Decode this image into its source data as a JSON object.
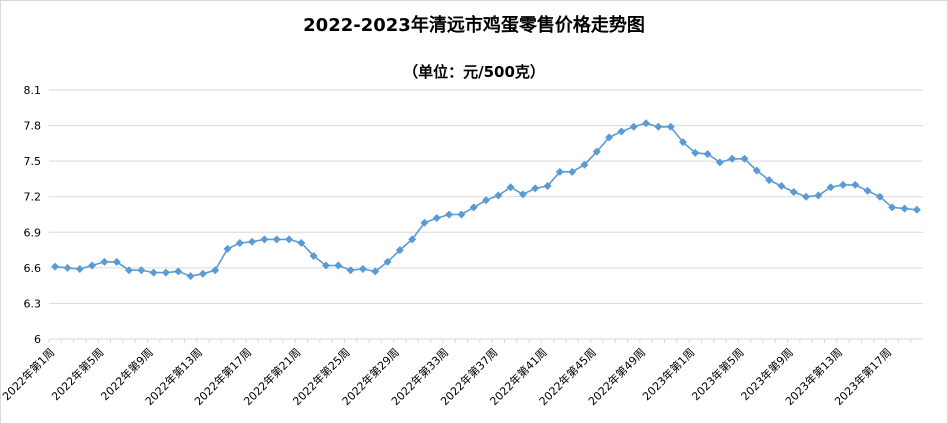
{
  "chart_data": {
    "type": "line",
    "title": "2022-2023年清远市鸡蛋零售价格走势图",
    "subtitle": "（单位：元/500克）",
    "xlabel": "",
    "ylabel": "",
    "ylim": [
      6,
      8.1
    ],
    "yticks": [
      "8.1",
      "7.8",
      "7.5",
      "7.2",
      "6.9",
      "6.6",
      "6.3",
      "6"
    ],
    "grid": true,
    "legend": "none",
    "color": "#5b9bd5",
    "x_tick_labels": [
      "2022年第1周",
      "2022年第5周",
      "2022年第9周",
      "2022年第13周",
      "2022年第17周",
      "2022年第21周",
      "2022年第25周",
      "2022年第29周",
      "2022年第33周",
      "2022年第37周",
      "2022年第41周",
      "2022年第45周",
      "2022年第49周",
      "2023年第1周",
      "2023年第5周",
      "2023年第9周",
      "2023年第13周",
      "2023年第17周"
    ],
    "series": [
      {
        "values": [
          6.61,
          6.6,
          6.59,
          6.62,
          6.65,
          6.65,
          6.58,
          6.58,
          6.56,
          6.56,
          6.57,
          6.53,
          6.55,
          6.58,
          6.76,
          6.81,
          6.82,
          6.84,
          6.84,
          6.84,
          6.81,
          6.7,
          6.62,
          6.62,
          6.58,
          6.59,
          6.57,
          6.65,
          6.75,
          6.84,
          6.98,
          7.02,
          7.05,
          7.05,
          7.11,
          7.17,
          7.21,
          7.28,
          7.22,
          7.27,
          7.29,
          7.41,
          7.41,
          7.47,
          7.58,
          7.7,
          7.75,
          7.79,
          7.82,
          7.79,
          7.79,
          7.66,
          7.57,
          7.56,
          7.49,
          7.52,
          7.52,
          7.42,
          7.34,
          7.29,
          7.24,
          7.2,
          7.21,
          7.28,
          7.3,
          7.3,
          7.25,
          7.2,
          7.11,
          7.1,
          7.09
        ]
      }
    ]
  }
}
